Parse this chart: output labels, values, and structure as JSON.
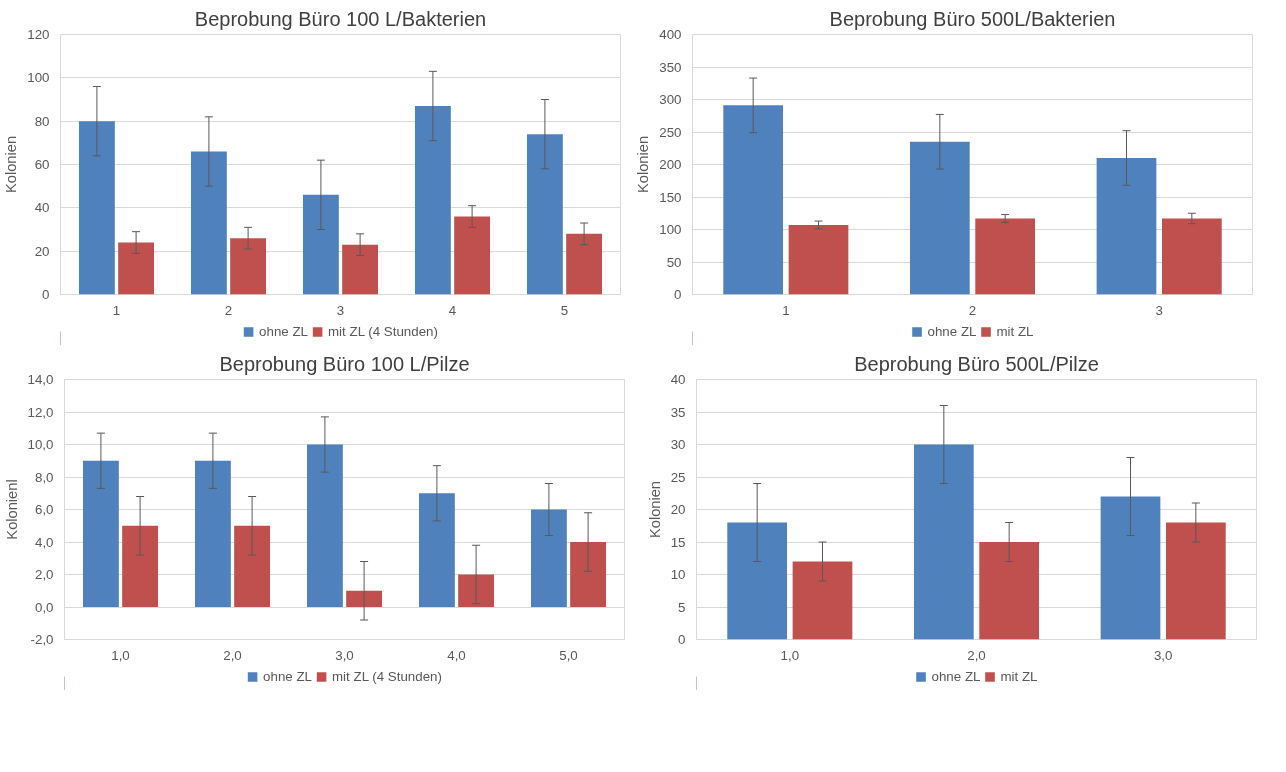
{
  "chart_data": [
    {
      "type": "bar",
      "title": "Beprobung Büro 100 L/Bakterien",
      "ylabel": "Kolonien",
      "categories": [
        "1",
        "2",
        "3",
        "4",
        "5"
      ],
      "series": [
        {
          "name": "ohne ZL",
          "color": "#4f81bd",
          "values": [
            80,
            66,
            46,
            87,
            74
          ],
          "errors": [
            16,
            16,
            16,
            16,
            16
          ]
        },
        {
          "name": "mit ZL (4 Stunden)",
          "color": "#c0504d",
          "values": [
            24,
            26,
            23,
            36,
            28
          ],
          "errors": [
            5,
            5,
            5,
            5,
            5
          ]
        }
      ],
      "ylim": [
        0,
        120
      ],
      "yticks": [
        0,
        20,
        40,
        60,
        80,
        100,
        120
      ],
      "grid": "y",
      "legend": "bottom"
    },
    {
      "type": "bar",
      "title": "Beprobung Büro 500L/Bakterien",
      "ylabel": "Kolonien",
      "categories": [
        "1",
        "2",
        "3"
      ],
      "series": [
        {
          "name": "ohne ZL",
          "color": "#4f81bd",
          "values": [
            291,
            235,
            210
          ],
          "errors": [
            42,
            42,
            42
          ]
        },
        {
          "name": "mit ZL",
          "color": "#c0504d",
          "values": [
            107,
            117,
            117
          ],
          "errors": [
            6,
            6,
            8
          ]
        }
      ],
      "ylim": [
        0,
        400
      ],
      "yticks": [
        0,
        50,
        100,
        150,
        200,
        250,
        300,
        350,
        400
      ],
      "grid": "y",
      "legend": "bottom"
    },
    {
      "type": "bar",
      "title": "Beprobung Büro 100 L/Pilze",
      "ylabel": "Kolonienl",
      "categories": [
        "1,0",
        "2,0",
        "3,0",
        "4,0",
        "5,0"
      ],
      "series": [
        {
          "name": "ohne ZL",
          "color": "#4f81bd",
          "values": [
            9,
            9,
            10,
            7,
            6
          ],
          "errors": [
            1.7,
            1.7,
            1.7,
            1.7,
            1.6
          ]
        },
        {
          "name": "mit ZL (4 Stunden)",
          "color": "#c0504d",
          "values": [
            5,
            5,
            1,
            2,
            4
          ],
          "errors": [
            1.8,
            1.8,
            1.8,
            1.8,
            1.8
          ]
        }
      ],
      "ylim": [
        -2,
        14
      ],
      "yticks": [
        {
          "value": -2,
          "label": "-2,0"
        },
        {
          "value": 0,
          "label": "0,0"
        },
        {
          "value": 2,
          "label": "2,0"
        },
        {
          "value": 4,
          "label": "4,0"
        },
        {
          "value": 6,
          "label": "6,0"
        },
        {
          "value": 8,
          "label": "8,0"
        },
        {
          "value": 10,
          "label": "10,0"
        },
        {
          "value": 12,
          "label": "12,0"
        },
        {
          "value": 14,
          "label": "14,0"
        }
      ],
      "grid": "y",
      "legend": "bottom"
    },
    {
      "type": "bar",
      "title": "Beprobung Büro 500L/Pilze",
      "ylabel": "Kolonien",
      "categories": [
        "1,0",
        "2,0",
        "3,0"
      ],
      "series": [
        {
          "name": "ohne ZL",
          "color": "#4f81bd",
          "values": [
            18,
            30,
            22
          ],
          "errors": [
            6,
            6,
            6
          ]
        },
        {
          "name": "mit ZL",
          "color": "#c0504d",
          "values": [
            12,
            15,
            18
          ],
          "errors": [
            3,
            3,
            3
          ]
        }
      ],
      "ylim": [
        0,
        40
      ],
      "yticks": [
        0,
        5,
        10,
        15,
        20,
        25,
        30,
        35,
        40
      ],
      "grid": "y",
      "legend": "bottom"
    }
  ]
}
